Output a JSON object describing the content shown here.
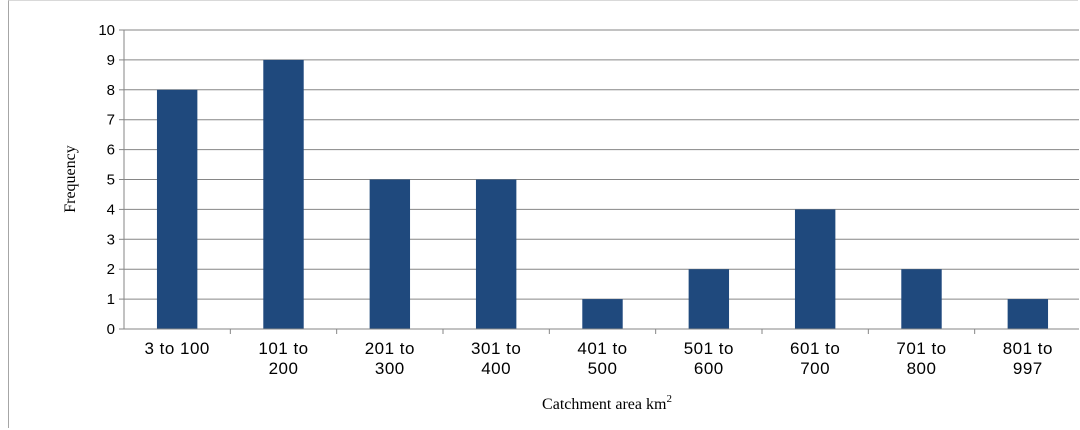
{
  "chart_data": {
    "type": "bar",
    "categories": [
      [
        "3 to 100"
      ],
      [
        "101 to",
        "200"
      ],
      [
        "201 to",
        "300"
      ],
      [
        "301 to",
        "400"
      ],
      [
        "401 to",
        "500"
      ],
      [
        "501 to",
        "600"
      ],
      [
        "601 to",
        "700"
      ],
      [
        "701 to",
        "800"
      ],
      [
        "801 to",
        "997"
      ]
    ],
    "values": [
      8,
      9,
      5,
      5,
      1,
      2,
      4,
      2,
      1
    ],
    "title": "",
    "xlabel": "Catchment area km",
    "xlabel_superscript": "2",
    "ylabel": "Frequency",
    "ylim": [
      0,
      10
    ],
    "yticks": [
      "0",
      "1",
      "2",
      "3",
      "4",
      "5",
      "6",
      "7",
      "8",
      "9",
      "10"
    ],
    "grid": true,
    "legend": "none",
    "bar_color": "#1f497d",
    "grid_color": "#868686"
  }
}
